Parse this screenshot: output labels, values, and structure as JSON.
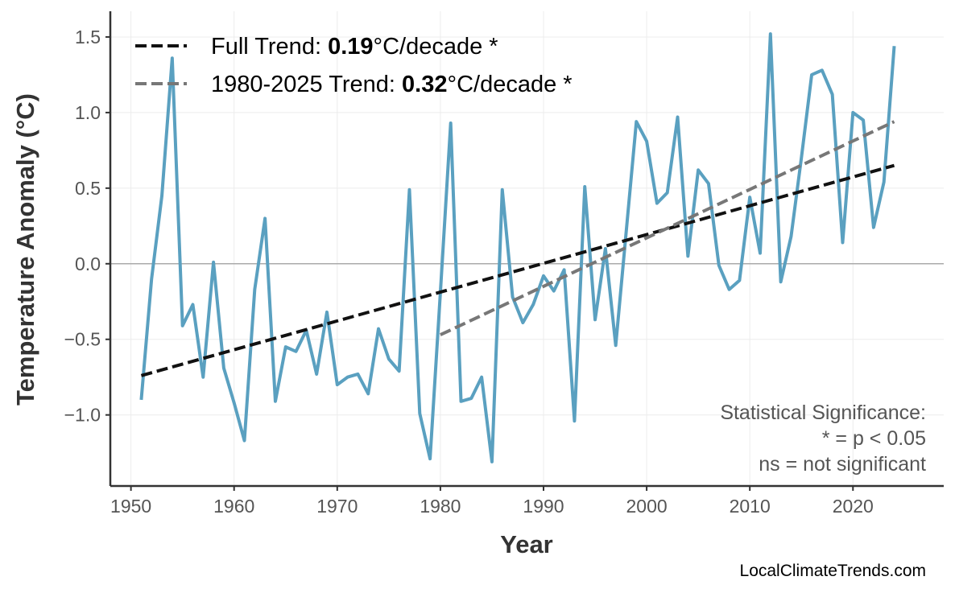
{
  "chart_data": {
    "type": "line",
    "xlabel": "Year",
    "ylabel": "Temperature Anomaly (°C)",
    "xlim": [
      1948,
      2028.8
    ],
    "ylim": [
      -1.47,
      1.67
    ],
    "xticks": [
      "1950",
      "1960",
      "1970",
      "1980",
      "1990",
      "2000",
      "2010",
      "2020"
    ],
    "yticks": [
      "1.5",
      "1.0",
      "0.5",
      "0.0",
      "−0.5",
      "−1.0"
    ],
    "grid": true,
    "legend_position": "top-left",
    "colors": {
      "series": "#5aa0c0",
      "full_trend": "#111111",
      "recent_trend": "#777777",
      "zero_line": "#aaaaaa"
    },
    "x": [
      1951,
      1952,
      1953,
      1954,
      1955,
      1956,
      1957,
      1958,
      1959,
      1960,
      1961,
      1962,
      1963,
      1964,
      1965,
      1966,
      1967,
      1968,
      1969,
      1970,
      1971,
      1972,
      1973,
      1974,
      1975,
      1976,
      1977,
      1978,
      1979,
      1980,
      1981,
      1982,
      1983,
      1984,
      1985,
      1986,
      1987,
      1988,
      1989,
      1990,
      1991,
      1992,
      1993,
      1994,
      1995,
      1996,
      1997,
      1998,
      1999,
      2000,
      2001,
      2002,
      2003,
      2004,
      2005,
      2006,
      2007,
      2008,
      2009,
      2010,
      2011,
      2012,
      2013,
      2014,
      2015,
      2016,
      2017,
      2018,
      2019,
      2020,
      2021,
      2022,
      2023,
      2024
    ],
    "values": [
      -0.9,
      -0.1,
      0.45,
      1.36,
      -0.41,
      -0.27,
      -0.75,
      0.01,
      -0.69,
      -0.92,
      -1.17,
      -0.17,
      0.3,
      -0.91,
      -0.55,
      -0.58,
      -0.44,
      -0.73,
      -0.32,
      -0.8,
      -0.75,
      -0.73,
      -0.86,
      -0.43,
      -0.63,
      -0.71,
      0.49,
      -0.99,
      -1.29,
      -0.19,
      0.93,
      -0.91,
      -0.89,
      -0.75,
      -1.31,
      0.49,
      -0.22,
      -0.39,
      -0.27,
      -0.08,
      -0.18,
      -0.04,
      -1.04,
      0.51,
      -0.37,
      0.1,
      -0.54,
      0.2,
      0.94,
      0.81,
      0.4,
      0.47,
      0.97,
      0.05,
      0.62,
      0.53,
      -0.01,
      -0.17,
      -0.11,
      0.44,
      0.07,
      1.52,
      -0.12,
      0.18,
      0.7,
      1.25,
      1.28,
      1.12,
      0.14,
      1.0,
      0.95,
      0.24,
      0.54,
      1.44
    ],
    "trends": [
      {
        "label_prefix": "Full Trend: ",
        "rate": "0.19",
        "label_suffix": "°C/decade *",
        "x": [
          1951,
          2024
        ],
        "y": [
          -0.74,
          0.65
        ]
      },
      {
        "label_prefix": "1980-2025 Trend: ",
        "rate": "0.32",
        "label_suffix": "°C/decade *",
        "x": [
          1980,
          2024
        ],
        "y": [
          -0.47,
          0.94
        ]
      }
    ],
    "annotation": [
      "Statistical Significance:",
      "* = p < 0.05",
      "ns = not significant"
    ]
  },
  "credit": "LocalClimateTrends.com"
}
